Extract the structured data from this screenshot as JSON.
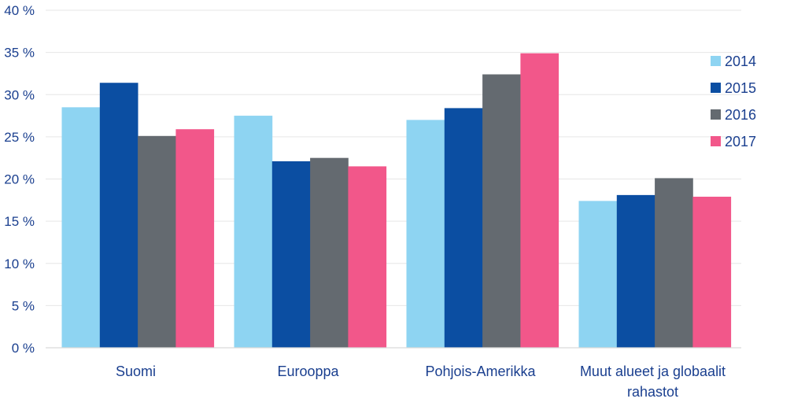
{
  "chart_data": {
    "type": "bar",
    "title": "",
    "xlabel": "",
    "ylabel": "",
    "categories": [
      [
        "Suomi"
      ],
      [
        "Eurooppa"
      ],
      [
        "Pohjois-Amerikka"
      ],
      [
        "Muut alueet ja globaalit",
        "rahastot"
      ]
    ],
    "series": [
      {
        "name": "2014",
        "color": "#8ed4f2",
        "values": [
          28.5,
          27.5,
          27.0,
          17.4
        ]
      },
      {
        "name": "2015",
        "color": "#0b4ea2",
        "values": [
          31.4,
          22.1,
          28.4,
          18.1
        ]
      },
      {
        "name": "2016",
        "color": "#646a70",
        "values": [
          25.1,
          22.5,
          32.4,
          20.1
        ]
      },
      {
        "name": "2017",
        "color": "#f2578a",
        "values": [
          25.9,
          21.5,
          34.9,
          17.9
        ]
      }
    ],
    "ylim": [
      0,
      40
    ],
    "yticks": [
      0,
      5,
      10,
      15,
      20,
      25,
      30,
      35,
      40
    ],
    "ytick_labels": [
      "0 %",
      "5 %",
      "10 %",
      "15 %",
      "20 %",
      "25 %",
      "30 %",
      "35 %",
      "40 %"
    ],
    "grid": true,
    "legend_position": "right"
  }
}
